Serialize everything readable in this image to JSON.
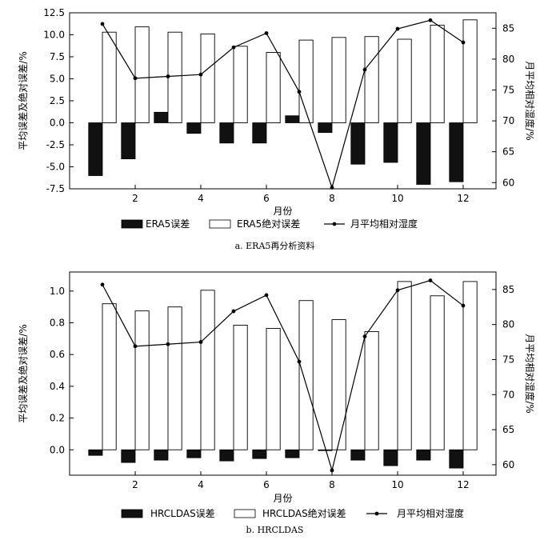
{
  "chart_data": [
    {
      "type": "bar",
      "title": "",
      "caption": "a. ERA5再分析资料",
      "xlabel": "月份",
      "ylabel": "平均误差及绝对误差/%",
      "y2label": "月平均相对湿度/%",
      "xlim": [
        0,
        13
      ],
      "ylim": [
        -7.5,
        12.5
      ],
      "y2lim": [
        59,
        87.5
      ],
      "xticks": [
        2,
        4,
        6,
        8,
        10,
        12
      ],
      "yticks": [
        -7.5,
        -5.0,
        -2.5,
        0.0,
        2.5,
        5.0,
        7.5,
        10.0,
        12.5
      ],
      "y2ticks": [
        60,
        65,
        70,
        75,
        80,
        85
      ],
      "ytick_labels": [
        "-7.5",
        "-5.0",
        "-2.5",
        "0.0",
        "2.5",
        "5.0",
        "7.5",
        "10.0",
        "12.5"
      ],
      "y2tick_labels": [
        "60",
        "65",
        "70",
        "75",
        "80",
        "85"
      ],
      "grid": false,
      "legend_position": "below",
      "categories": [
        1,
        2,
        3,
        4,
        5,
        6,
        7,
        8,
        9,
        10,
        11,
        12
      ],
      "series": [
        {
          "name": "ERA5误差",
          "kind": "bar",
          "axis": "left",
          "color": "#111111",
          "values": [
            -6.0,
            -4.1,
            1.2,
            -1.2,
            -2.3,
            -2.3,
            0.8,
            -1.1,
            -4.7,
            -4.5,
            -7.0,
            -6.7
          ]
        },
        {
          "name": "ERA5绝对误差",
          "kind": "bar",
          "axis": "left",
          "color": "#ffffff",
          "values": [
            10.3,
            10.9,
            10.3,
            10.1,
            8.7,
            8.0,
            9.4,
            9.7,
            9.8,
            9.5,
            11.1,
            11.7
          ]
        },
        {
          "name": "月平均相对湿度",
          "kind": "line",
          "axis": "right",
          "color": "#000000",
          "values": [
            85.7,
            76.9,
            77.2,
            77.5,
            81.9,
            84.2,
            74.7,
            59.2,
            78.3,
            84.9,
            86.3,
            82.7
          ]
        }
      ]
    },
    {
      "type": "bar",
      "title": "",
      "caption": "b. HRCLDAS",
      "xlabel": "月份",
      "ylabel": "平均误差及绝对误差/%",
      "y2label": "月平均相对湿度/%",
      "xlim": [
        0,
        13
      ],
      "ylim": [
        -0.16,
        1.12
      ],
      "y2lim": [
        58.5,
        87.5
      ],
      "xticks": [
        2,
        4,
        6,
        8,
        10,
        12
      ],
      "yticks": [
        0.0,
        0.2,
        0.4,
        0.6,
        0.8,
        1.0
      ],
      "y2ticks": [
        60,
        65,
        70,
        75,
        80,
        85
      ],
      "ytick_labels": [
        "0.0",
        "0.2",
        "0.4",
        "0.6",
        "0.8",
        "1.0"
      ],
      "y2tick_labels": [
        "60",
        "65",
        "70",
        "75",
        "80",
        "85"
      ],
      "grid": false,
      "legend_position": "below",
      "categories": [
        1,
        2,
        3,
        4,
        5,
        6,
        7,
        8,
        9,
        10,
        11,
        12
      ],
      "series": [
        {
          "name": "HRCLDAS误差",
          "kind": "bar",
          "axis": "left",
          "color": "#111111",
          "values": [
            -0.035,
            -0.08,
            -0.065,
            -0.05,
            -0.07,
            -0.055,
            -0.05,
            -0.005,
            -0.065,
            -0.1,
            -0.065,
            -0.115
          ]
        },
        {
          "name": "HRCLDAS绝对误差",
          "kind": "bar",
          "axis": "left",
          "color": "#ffffff",
          "values": [
            0.92,
            0.875,
            0.9,
            1.005,
            0.785,
            0.765,
            0.94,
            0.82,
            0.745,
            1.06,
            0.97,
            1.06
          ]
        },
        {
          "name": "月平均相对湿度",
          "kind": "line",
          "axis": "right",
          "color": "#000000",
          "values": [
            85.7,
            76.9,
            77.2,
            77.5,
            81.9,
            84.2,
            74.7,
            59.2,
            78.3,
            84.9,
            86.3,
            82.7
          ]
        }
      ]
    }
  ]
}
